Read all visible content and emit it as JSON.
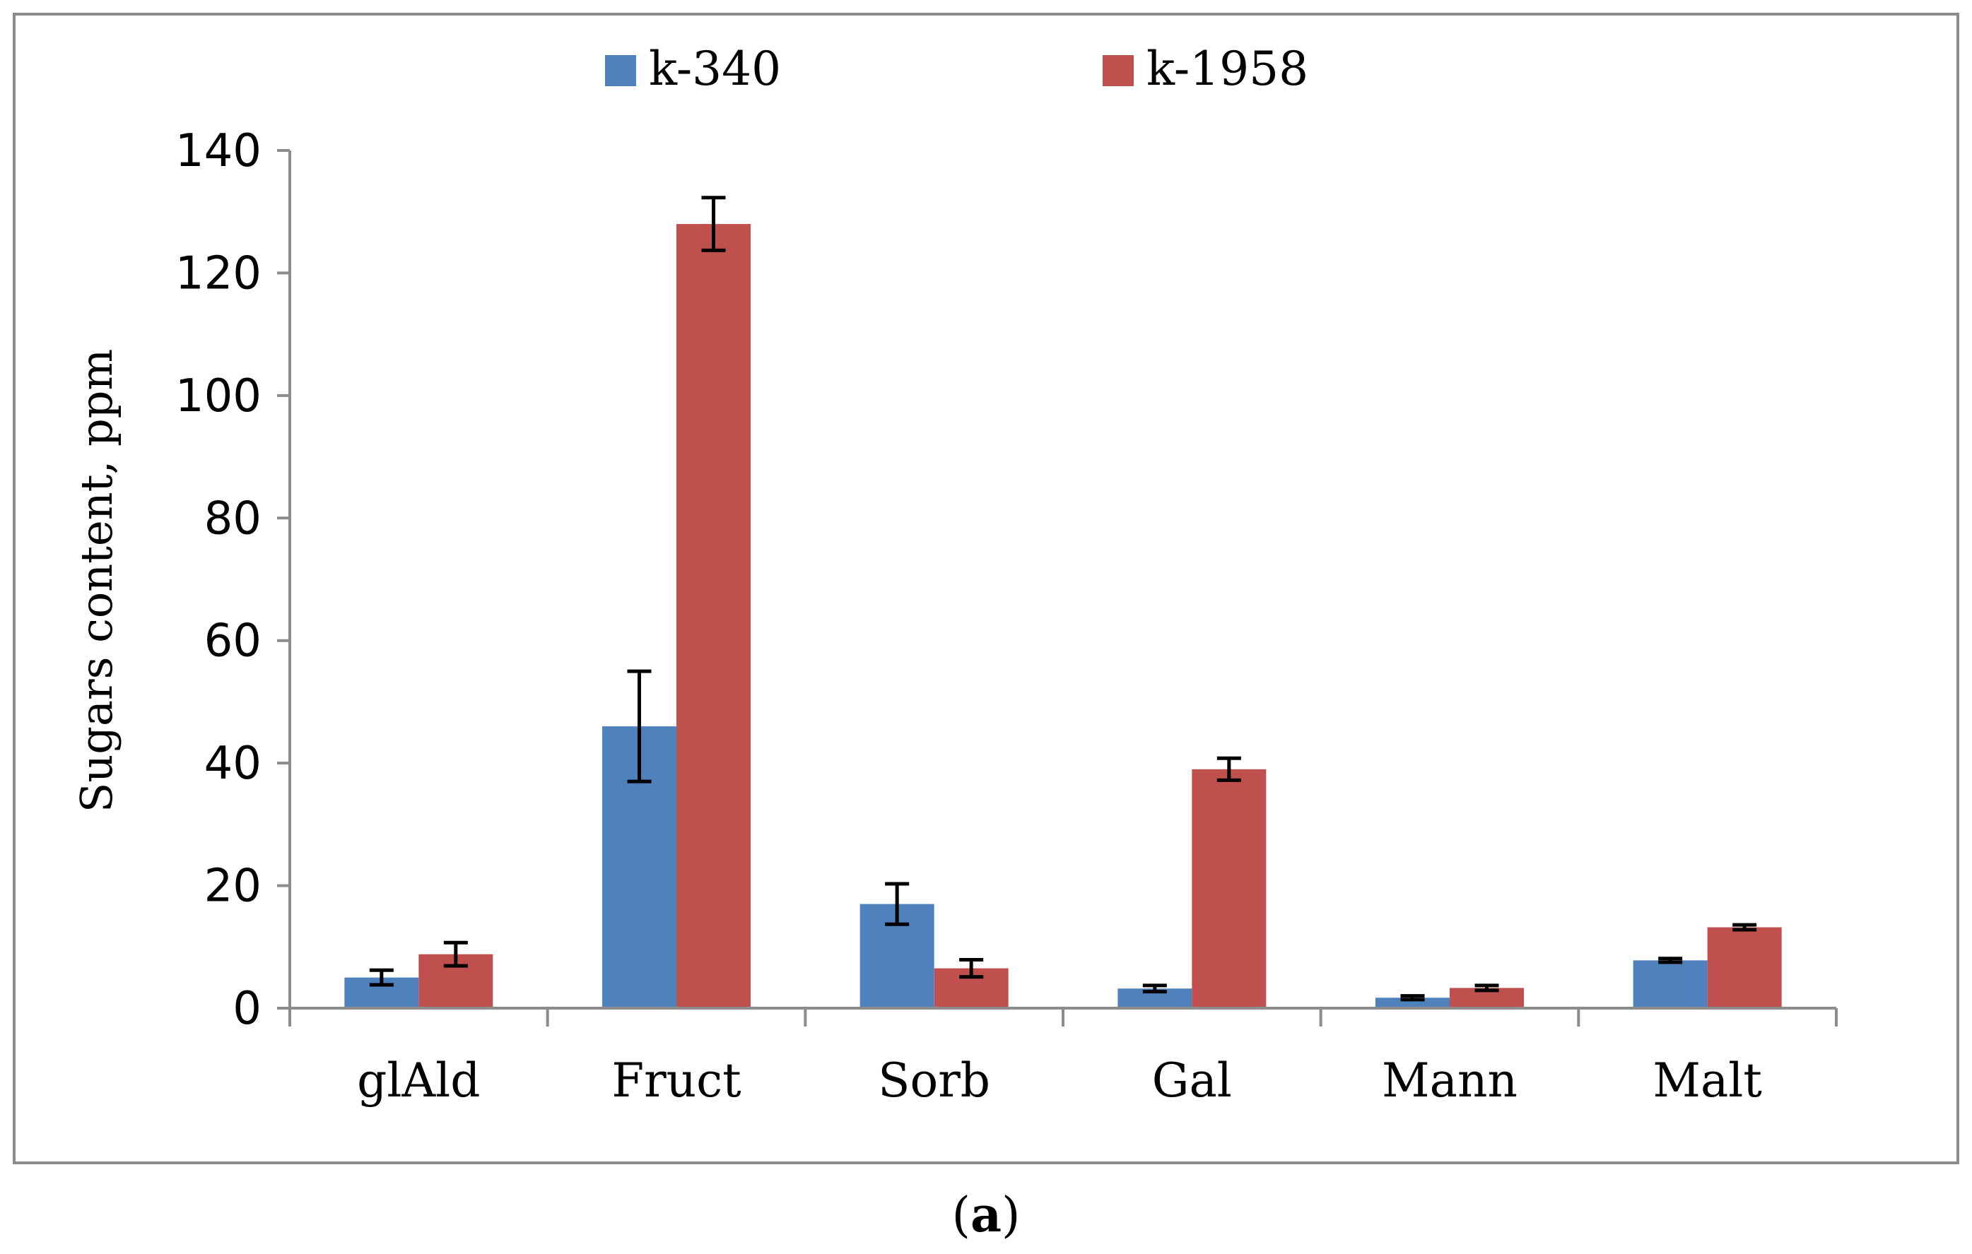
{
  "chart_data": {
    "type": "bar",
    "title": "",
    "xlabel": "",
    "ylabel": "Sugars content, ppm",
    "ylim": [
      0,
      140
    ],
    "yticks": [
      0,
      20,
      40,
      60,
      80,
      100,
      120,
      140
    ],
    "yticks_text": [
      "0",
      "20",
      "40",
      "60",
      "80",
      "100",
      "120",
      "140"
    ],
    "grid": false,
    "legend_position": "top-center",
    "categories": [
      "glAld",
      "Fruct",
      "Sorb",
      "Gal",
      "Mann",
      "Malt"
    ],
    "series": [
      {
        "name": "k-340",
        "color": "#4f81bd",
        "values": [
          5.0,
          46.0,
          17.0,
          3.2,
          1.7,
          7.8
        ],
        "errors": [
          1.2,
          9.0,
          3.3,
          0.5,
          0.3,
          0.3
        ]
      },
      {
        "name": "k-1958",
        "color": "#c0504d",
        "values": [
          8.8,
          128.0,
          6.5,
          39.0,
          3.3,
          13.2
        ],
        "errors": [
          1.9,
          4.3,
          1.4,
          1.8,
          0.4,
          0.4
        ]
      }
    ]
  },
  "caption": {
    "open": "(",
    "letter": "a",
    "close": ")"
  }
}
